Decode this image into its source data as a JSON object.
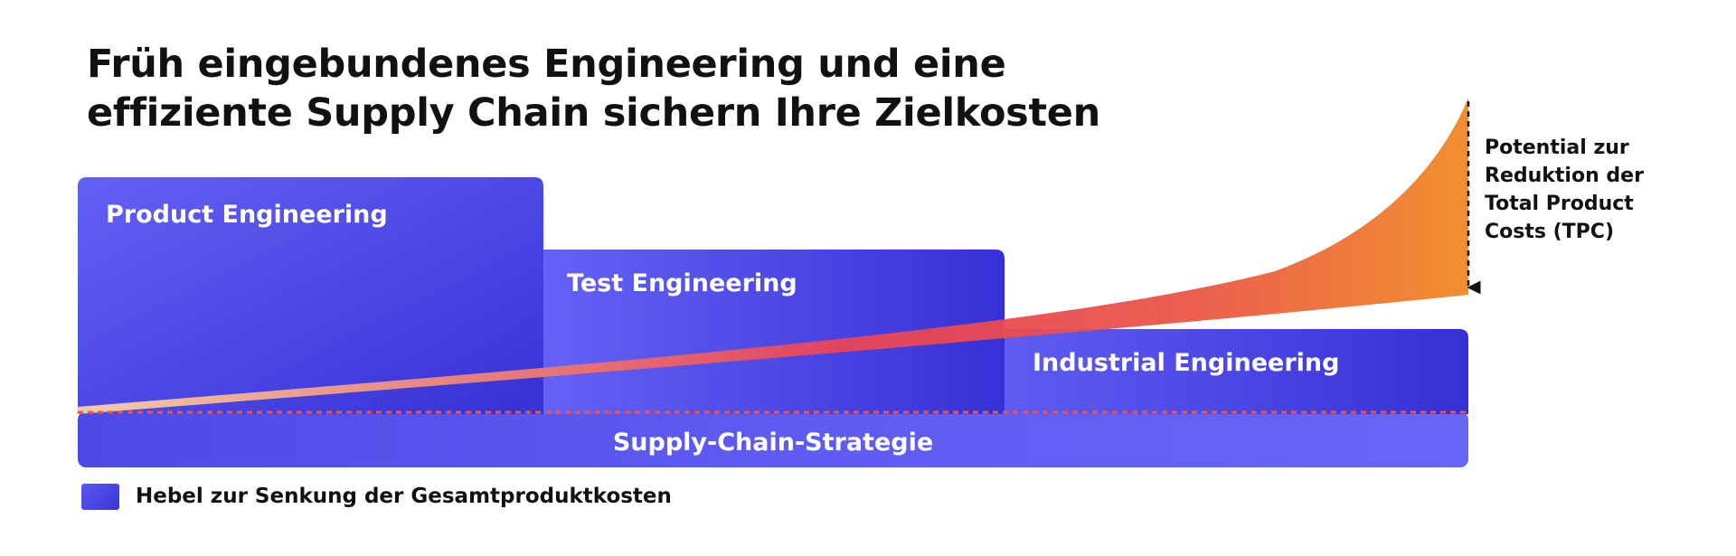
{
  "title": {
    "line1": "Früh eingebundenes Engineering und eine",
    "line2": "effiziente Supply Chain sichern Ihre Zielkosten"
  },
  "blocks": {
    "product": "Product Engineering",
    "test": "Test Engineering",
    "industrial": "Industrial Engineering",
    "supply_chain": "Supply-Chain-Strategie"
  },
  "annotation": {
    "line1": "Potential zur",
    "line2": "Reduktion der",
    "line3": "Total Product",
    "line4": "Costs (TPC)"
  },
  "legend": {
    "label": "Hebel zur Senkung der Gesamtproduktkosten"
  },
  "colors": {
    "block_light": "#6a67f7",
    "block_dark": "#3530d4",
    "wedge_start": "#f8c79a",
    "wedge_mid": "#e84356",
    "wedge_end": "#f08a24",
    "dashed_line": "#e8584a",
    "text": "#111111"
  }
}
